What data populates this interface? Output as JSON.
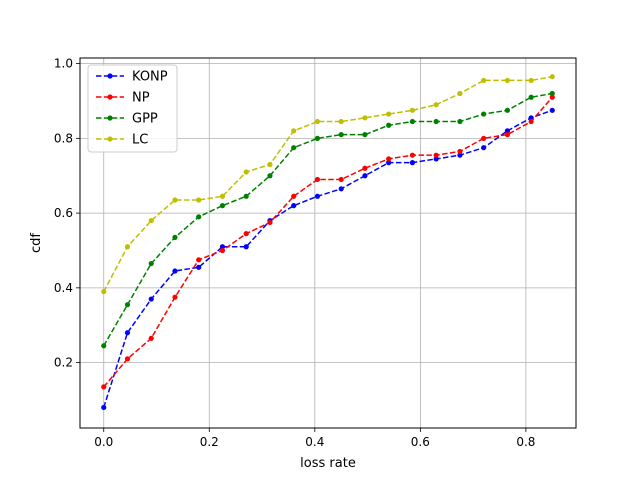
{
  "chart_data": {
    "type": "line",
    "title": "",
    "xlabel": "loss rate",
    "ylabel": "cdf",
    "xlim": [
      -0.045,
      0.895
    ],
    "ylim": [
      0.025,
      1.015
    ],
    "xticks": [
      0.0,
      0.2,
      0.4,
      0.6,
      0.8
    ],
    "xtick_labels": [
      "0.0",
      "0.2",
      "0.4",
      "0.6",
      "0.8"
    ],
    "yticks": [
      0.2,
      0.4,
      0.6,
      0.8,
      1.0
    ],
    "ytick_labels": [
      "0.2",
      "0.4",
      "0.6",
      "0.8",
      "1.0"
    ],
    "grid": true,
    "legend_position": "top-left",
    "x": [
      0.0,
      0.045,
      0.09,
      0.135,
      0.18,
      0.225,
      0.27,
      0.315,
      0.36,
      0.405,
      0.45,
      0.495,
      0.54,
      0.585,
      0.63,
      0.675,
      0.72,
      0.765,
      0.81,
      0.85
    ],
    "series": [
      {
        "name": "KONP",
        "color": "#0000ff",
        "values": [
          0.08,
          0.28,
          0.37,
          0.445,
          0.455,
          0.51,
          0.51,
          0.58,
          0.62,
          0.645,
          0.665,
          0.7,
          0.735,
          0.735,
          0.745,
          0.755,
          0.775,
          0.82,
          0.855,
          0.875
        ]
      },
      {
        "name": "NP",
        "color": "#ff0000",
        "values": [
          0.135,
          0.21,
          0.265,
          0.375,
          0.475,
          0.5,
          0.545,
          0.575,
          0.645,
          0.69,
          0.69,
          0.72,
          0.745,
          0.755,
          0.755,
          0.765,
          0.8,
          0.81,
          0.845,
          0.91
        ]
      },
      {
        "name": "GPP",
        "color": "#008000",
        "values": [
          0.245,
          0.355,
          0.465,
          0.535,
          0.59,
          0.62,
          0.645,
          0.7,
          0.775,
          0.8,
          0.81,
          0.81,
          0.835,
          0.845,
          0.845,
          0.845,
          0.865,
          0.875,
          0.91,
          0.92
        ]
      },
      {
        "name": "LC",
        "color": "#bfbf00",
        "values": [
          0.39,
          0.51,
          0.58,
          0.635,
          0.635,
          0.645,
          0.71,
          0.73,
          0.82,
          0.845,
          0.845,
          0.855,
          0.865,
          0.875,
          0.89,
          0.92,
          0.955,
          0.955,
          0.955,
          0.965
        ]
      }
    ]
  }
}
